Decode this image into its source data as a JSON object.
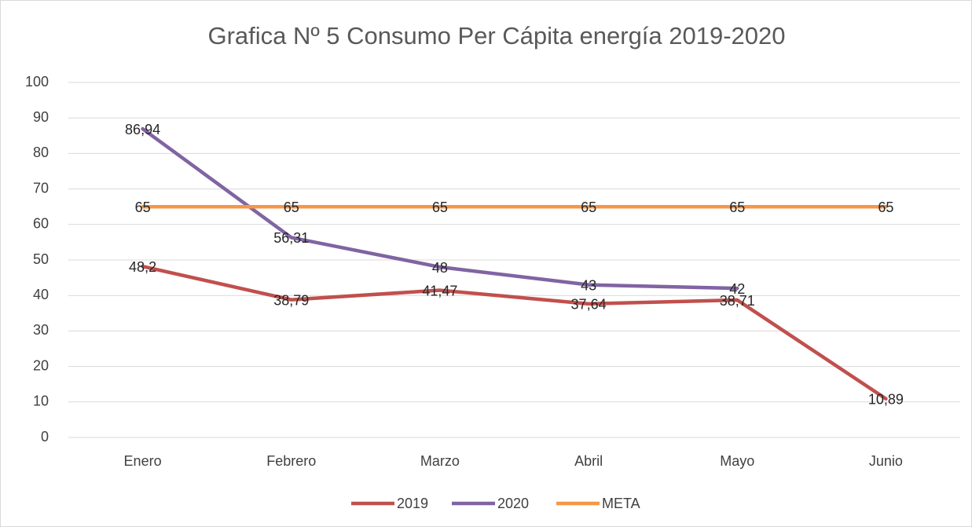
{
  "chart_data": {
    "type": "line",
    "title": "Grafica Nº 5 Consumo Per Cápita energía 2019-2020",
    "categories": [
      "Enero",
      "Febrero",
      "Marzo",
      "Abril",
      "Mayo",
      "Junio"
    ],
    "series": [
      {
        "name": "2019",
        "color": "#c0504d",
        "values": [
          48.2,
          38.79,
          41.47,
          37.64,
          38.71,
          10.89
        ],
        "value_labels": [
          "48,2",
          "38,79",
          "41,47",
          "37,64",
          "38,71",
          "10,89"
        ]
      },
      {
        "name": "2020",
        "color": "#8064a2",
        "values": [
          86.94,
          56.31,
          48,
          43,
          42,
          null
        ],
        "value_labels": [
          "86,94",
          "56,31",
          "48",
          "43",
          "42",
          null
        ]
      },
      {
        "name": "META",
        "color": "#f79646",
        "values": [
          65,
          65,
          65,
          65,
          65,
          65
        ]
      }
    ],
    "ylim": [
      0,
      100
    ],
    "yticks": [
      0,
      10,
      20,
      30,
      40,
      50,
      60,
      70,
      80,
      90,
      100
    ],
    "grid": true,
    "legend": "bottom"
  }
}
